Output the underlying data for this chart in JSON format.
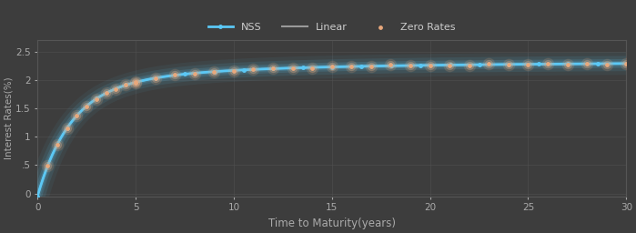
{
  "background_color": "#3d3d3d",
  "plot_bg_color": "#3d3d3d",
  "grid_color": "#555555",
  "xlabel": "Time to Maturity(years)",
  "ylabel": "Interest Rates(%)",
  "xlim": [
    0,
    30
  ],
  "ylim": [
    -0.05,
    2.7
  ],
  "yticks": [
    0,
    0.5,
    1.0,
    1.5,
    2.0,
    2.5
  ],
  "ytick_labels": [
    "0",
    ".5",
    "1",
    "1.5",
    "2",
    "2.5"
  ],
  "xticks": [
    0,
    5,
    10,
    15,
    20,
    25,
    30
  ],
  "nss_color": "#5bc8f5",
  "linear_color": "#999999",
  "zero_rates_color": "#e8a87c",
  "legend_text_color": "#cccccc",
  "tick_color": "#aaaaaa",
  "nss_lw": 2.0,
  "linear_lw": 1.5,
  "figwidth": 6.99,
  "figheight": 2.56,
  "dpi": 100
}
